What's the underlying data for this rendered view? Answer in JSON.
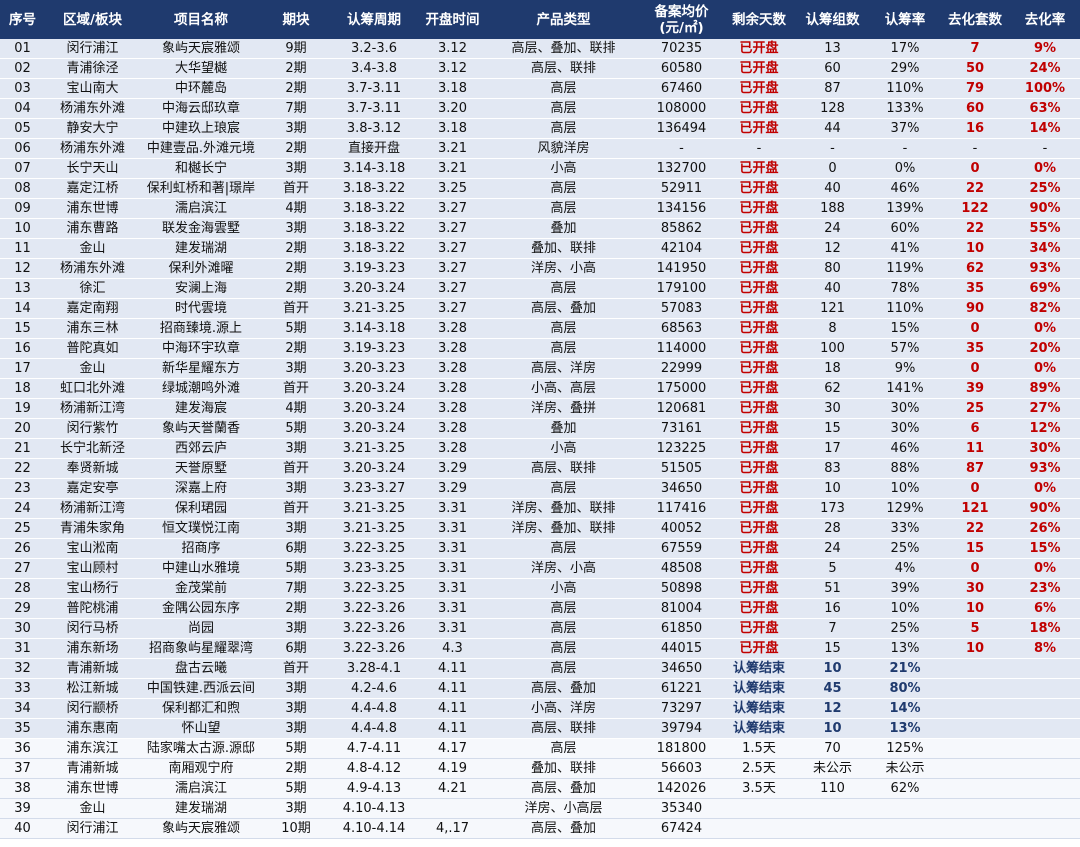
{
  "table": {
    "header": [
      "序号",
      "区域/板块",
      "项目名称",
      "期块",
      "认筹周期",
      "开盘时间",
      "产品类型",
      [
        "备案均价",
        "(元/㎡)"
      ],
      "剩余天数",
      "认筹组数",
      "认筹率",
      "去化套数",
      "去化率"
    ],
    "rows": [
      [
        "01",
        "闵行浦江",
        "象屿天宸雅颂",
        "9期",
        "3.2-3.6",
        "3.12",
        "高层、叠加、联排",
        "70235",
        "已开盘",
        "13",
        "17%",
        "7",
        "9%"
      ],
      [
        "02",
        "青浦徐泾",
        "大华望樾",
        "2期",
        "3.4-3.8",
        "3.12",
        "高层、联排",
        "60580",
        "已开盘",
        "60",
        "29%",
        "50",
        "24%"
      ],
      [
        "03",
        "宝山南大",
        "中环麓岛",
        "2期",
        "3.7-3.11",
        "3.18",
        "高层",
        "67460",
        "已开盘",
        "87",
        "110%",
        "79",
        "100%"
      ],
      [
        "04",
        "杨浦东外滩",
        "中海云邸玖章",
        "7期",
        "3.7-3.11",
        "3.20",
        "高层",
        "108000",
        "已开盘",
        "128",
        "133%",
        "60",
        "63%"
      ],
      [
        "05",
        "静安大宁",
        "中建玖上琅宸",
        "3期",
        "3.8-3.12",
        "3.18",
        "高层",
        "136494",
        "已开盘",
        "44",
        "37%",
        "16",
        "14%"
      ],
      [
        "06",
        "杨浦东外滩",
        "中建壹品.外滩元境",
        "2期",
        "直接开盘",
        "3.21",
        "风貌洋房",
        "-",
        "-",
        "-",
        "-",
        "-",
        "-"
      ],
      [
        "07",
        "长宁天山",
        "和樾长宁",
        "3期",
        "3.14-3.18",
        "3.21",
        "小高",
        "132700",
        "已开盘",
        "0",
        "0%",
        "0",
        "0%"
      ],
      [
        "08",
        "嘉定江桥",
        "保利虹桥和著|璟岸",
        "首开",
        "3.18-3.22",
        "3.25",
        "高层",
        "52911",
        "已开盘",
        "40",
        "46%",
        "22",
        "25%"
      ],
      [
        "09",
        "浦东世博",
        "濡启滨江",
        "4期",
        "3.18-3.22",
        "3.27",
        "高层",
        "134156",
        "已开盘",
        "188",
        "139%",
        "122",
        "90%"
      ],
      [
        "10",
        "浦东曹路",
        "联发金海雲墅",
        "3期",
        "3.18-3.22",
        "3.27",
        "叠加",
        "85862",
        "已开盘",
        "24",
        "60%",
        "22",
        "55%"
      ],
      [
        "11",
        "金山",
        "建发瑞湖",
        "2期",
        "3.18-3.22",
        "3.27",
        "叠加、联排",
        "42104",
        "已开盘",
        "12",
        "41%",
        "10",
        "34%"
      ],
      [
        "12",
        "杨浦东外滩",
        "保利外滩曜",
        "2期",
        "3.19-3.23",
        "3.27",
        "洋房、小高",
        "141950",
        "已开盘",
        "80",
        "119%",
        "62",
        "93%"
      ],
      [
        "13",
        "徐汇",
        "安澜上海",
        "2期",
        "3.20-3.24",
        "3.27",
        "高层",
        "179100",
        "已开盘",
        "40",
        "78%",
        "35",
        "69%"
      ],
      [
        "14",
        "嘉定南翔",
        "时代雲境",
        "首开",
        "3.21-3.25",
        "3.27",
        "高层、叠加",
        "57083",
        "已开盘",
        "121",
        "110%",
        "90",
        "82%"
      ],
      [
        "15",
        "浦东三林",
        "招商臻境.源上",
        "5期",
        "3.14-3.18",
        "3.28",
        "高层",
        "68563",
        "已开盘",
        "8",
        "15%",
        "0",
        "0%"
      ],
      [
        "16",
        "普陀真如",
        "中海环宇玖章",
        "2期",
        "3.19-3.23",
        "3.28",
        "高层",
        "114000",
        "已开盘",
        "100",
        "57%",
        "35",
        "20%"
      ],
      [
        "17",
        "金山",
        "新华星耀东方",
        "3期",
        "3.20-3.23",
        "3.28",
        "高层、洋房",
        "22999",
        "已开盘",
        "18",
        "9%",
        "0",
        "0%"
      ],
      [
        "18",
        "虹口北外滩",
        "绿城潮鸣外滩",
        "首开",
        "3.20-3.24",
        "3.28",
        "小高、高层",
        "175000",
        "已开盘",
        "62",
        "141%",
        "39",
        "89%"
      ],
      [
        "19",
        "杨浦新江湾",
        "建发海宸",
        "4期",
        "3.20-3.24",
        "3.28",
        "洋房、叠拼",
        "120681",
        "已开盘",
        "30",
        "30%",
        "25",
        "27%"
      ],
      [
        "20",
        "闵行紫竹",
        "象屿天誉蘭香",
        "5期",
        "3.20-3.24",
        "3.28",
        "叠加",
        "73161",
        "已开盘",
        "15",
        "30%",
        "6",
        "12%"
      ],
      [
        "21",
        "长宁北新泾",
        "西郊云庐",
        "3期",
        "3.21-3.25",
        "3.28",
        "小高",
        "123225",
        "已开盘",
        "17",
        "46%",
        "11",
        "30%"
      ],
      [
        "22",
        "奉贤新城",
        "天誉原墅",
        "首开",
        "3.20-3.24",
        "3.29",
        "高层、联排",
        "51505",
        "已开盘",
        "83",
        "88%",
        "87",
        "93%"
      ],
      [
        "23",
        "嘉定安亭",
        "深嘉上府",
        "3期",
        "3.23-3.27",
        "3.29",
        "高层",
        "34650",
        "已开盘",
        "10",
        "10%",
        "0",
        "0%"
      ],
      [
        "24",
        "杨浦新江湾",
        "保利珺园",
        "首开",
        "3.21-3.25",
        "3.31",
        "洋房、叠加、联排",
        "117416",
        "已开盘",
        "173",
        "129%",
        "121",
        "90%"
      ],
      [
        "25",
        "青浦朱家角",
        "恒文璞悦江南",
        "3期",
        "3.21-3.25",
        "3.31",
        "洋房、叠加、联排",
        "40052",
        "已开盘",
        "28",
        "33%",
        "22",
        "26%"
      ],
      [
        "26",
        "宝山淞南",
        "招商序",
        "6期",
        "3.22-3.25",
        "3.31",
        "高层",
        "67559",
        "已开盘",
        "24",
        "25%",
        "15",
        "15%"
      ],
      [
        "27",
        "宝山顾村",
        "中建山水雅境",
        "5期",
        "3.23-3.25",
        "3.31",
        "洋房、小高",
        "48508",
        "已开盘",
        "5",
        "4%",
        "0",
        "0%"
      ],
      [
        "28",
        "宝山杨行",
        "金茂棠前",
        "7期",
        "3.22-3.25",
        "3.31",
        "小高",
        "50898",
        "已开盘",
        "51",
        "39%",
        "30",
        "23%"
      ],
      [
        "29",
        "普陀桃浦",
        "金隅公园东序",
        "2期",
        "3.22-3.26",
        "3.31",
        "高层",
        "81004",
        "已开盘",
        "16",
        "10%",
        "10",
        "6%"
      ],
      [
        "30",
        "闵行马桥",
        "尚园",
        "3期",
        "3.22-3.26",
        "3.31",
        "高层",
        "61850",
        "已开盘",
        "7",
        "25%",
        "5",
        "18%"
      ],
      [
        "31",
        "浦东新场",
        "招商象屿星耀翠湾",
        "6期",
        "3.22-3.26",
        "4.3",
        "高层",
        "44015",
        "已开盘",
        "15",
        "13%",
        "10",
        "8%"
      ],
      [
        "32",
        "青浦新城",
        "盘古云曦",
        "首开",
        "3.28-4.1",
        "4.11",
        "高层",
        "34650",
        "认筹结束",
        "10",
        "21%",
        null,
        null
      ],
      [
        "33",
        "松江新城",
        "中国铁建.西派云间",
        "3期",
        "4.2-4.6",
        "4.11",
        "高层、叠加",
        "61221",
        "认筹结束",
        "45",
        "80%",
        null,
        null
      ],
      [
        "34",
        "闵行颛桥",
        "保利都汇和煦",
        "3期",
        "4.4-4.8",
        "4.11",
        "小高、洋房",
        "73297",
        "认筹结束",
        "12",
        "14%",
        null,
        null
      ],
      [
        "35",
        "浦东惠南",
        "怀山望",
        "3期",
        "4.4-4.8",
        "4.11",
        "高层、联排",
        "39794",
        "认筹结束",
        "10",
        "13%",
        null,
        null
      ],
      [
        "36",
        "浦东滨江",
        "陆家嘴太古源.源邸",
        "5期",
        "4.7-4.11",
        "4.17",
        "高层",
        "181800",
        "1.5天",
        "70",
        "125%",
        null,
        null
      ],
      [
        "37",
        "青浦新城",
        "南厢观宁府",
        "2期",
        "4.8-4.12",
        "4.19",
        "叠加、联排",
        "56603",
        "2.5天",
        "未公示",
        "未公示",
        null,
        null
      ],
      [
        "38",
        "浦东世博",
        "濡启滨江",
        "5期",
        "4.9-4.13",
        "4.21",
        "高层、叠加",
        "142026",
        "3.5天",
        "110",
        "62%",
        null,
        null
      ],
      [
        "39",
        "金山",
        "建发瑞湖",
        "3期",
        "4.10-4.13",
        null,
        "洋房、小高层",
        "35340",
        null,
        null,
        null,
        null,
        null
      ],
      [
        "40",
        "闵行浦江",
        "象屿天宸雅颂",
        "10期",
        "4.10-4.14",
        "4,.17",
        "高层、叠加",
        "67424",
        null,
        null,
        null,
        null,
        null
      ]
    ]
  }
}
